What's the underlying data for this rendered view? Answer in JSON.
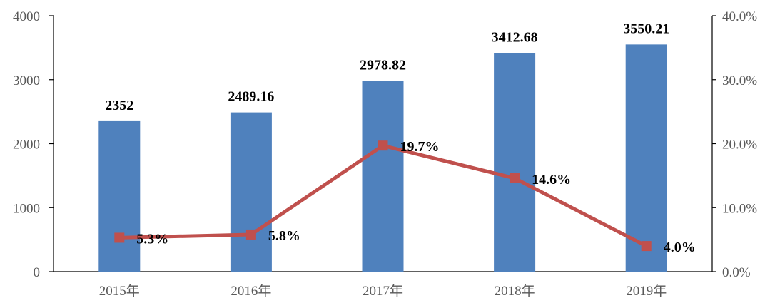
{
  "chart_data": {
    "type": "bar",
    "categories": [
      "2015年",
      "2016年",
      "2017年",
      "2018年",
      "2019年"
    ],
    "series": [
      {
        "type": "bar",
        "axis": "left",
        "values": [
          2352,
          2489.16,
          2978.82,
          3412.68,
          3550.21
        ],
        "labels": [
          "2352",
          "2489.16",
          "2978.82",
          "3412.68",
          "3550.21"
        ]
      },
      {
        "type": "line",
        "axis": "right",
        "values": [
          5.3,
          5.8,
          19.7,
          14.6,
          4.0
        ],
        "labels": [
          "5.3%",
          "5.8%",
          "19.7%",
          "14.6%",
          "4.0%"
        ]
      }
    ],
    "y_left": {
      "ylim": [
        0,
        4000
      ],
      "ticks": [
        "0",
        "1000",
        "2000",
        "3000",
        "4000"
      ]
    },
    "y_right": {
      "ylim": [
        0,
        40
      ],
      "ticks": [
        "0.0%",
        "10.0%",
        "20.0%",
        "30.0%",
        "40.0%"
      ]
    },
    "grid": false,
    "colors": {
      "bar": "#4F81BD",
      "line": "#C0504D",
      "axis": "#000000",
      "tick_text": "#595959"
    }
  }
}
